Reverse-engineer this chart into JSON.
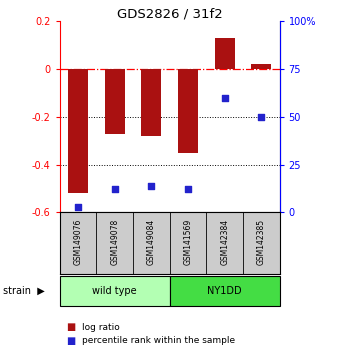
{
  "title": "GDS2826 / 31f2",
  "samples": [
    "GSM149076",
    "GSM149078",
    "GSM149084",
    "GSM141569",
    "GSM142384",
    "GSM142385"
  ],
  "log_ratio": [
    -0.52,
    -0.27,
    -0.28,
    -0.35,
    0.13,
    0.02
  ],
  "percentile_rank": [
    3,
    12,
    14,
    12,
    60,
    50
  ],
  "groups": [
    {
      "label": "wild type",
      "indices": [
        0,
        1,
        2
      ],
      "color": "#b3ffb3"
    },
    {
      "label": "NY1DD",
      "indices": [
        3,
        4,
        5
      ],
      "color": "#44dd44"
    }
  ],
  "ylim": [
    -0.6,
    0.2
  ],
  "yticks_left": [
    -0.6,
    -0.4,
    -0.2,
    0.0,
    0.2
  ],
  "yticks_right": [
    0,
    25,
    50,
    75,
    100
  ],
  "bar_color": "#aa1111",
  "dot_color": "#2222cc",
  "plot_bg": "#ffffff",
  "dotted_lines": [
    -0.2,
    -0.4
  ],
  "bar_width": 0.55,
  "group_light_color": "#b3ffb3",
  "group_dark_color": "#44dd44"
}
